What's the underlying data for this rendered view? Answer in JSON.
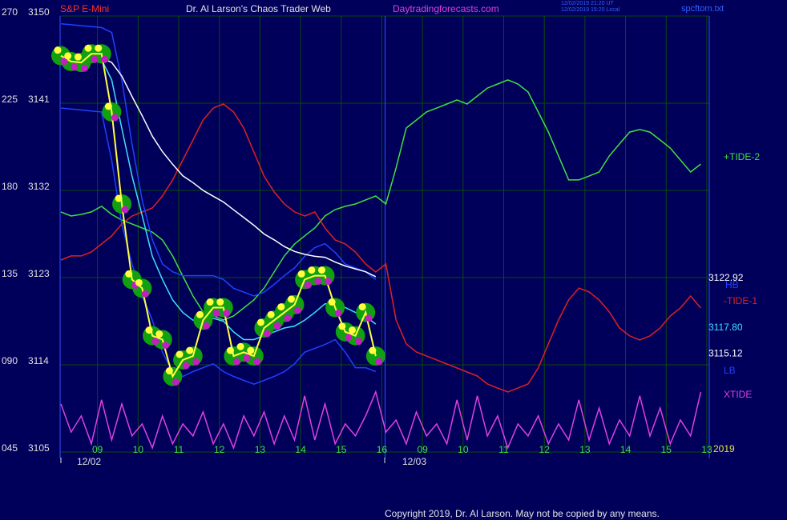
{
  "header": {
    "symbol": "S&P E-Mini",
    "title": "Dr. Al Larson's Chaos Trader Web",
    "site": "Daytradingforecasts.com",
    "stamp": [
      "12/02/2019 21:20 UT",
      "12/02/2019 15:20 Local"
    ],
    "file": "spcftom.txt"
  },
  "footer": "Copyright 2019, Dr. Al Larson. May not be copied by any means.",
  "chart_data": {
    "type": "line",
    "background": "#00005a",
    "grid": true,
    "grid_color": "#0a4a0a",
    "ylim": [
      3105,
      3150
    ],
    "yticks": [
      3105,
      3114,
      3123,
      3132,
      3141,
      3150
    ],
    "y2lim": [
      45,
      270
    ],
    "y2ticks": [
      {
        "value": 45,
        "label": "045"
      },
      {
        "value": 90,
        "label": "090"
      },
      135,
      180,
      225,
      270
    ],
    "xlim": [
      8.08,
      24.06
    ],
    "xticks": [
      {
        "value": 9,
        "label": "09"
      },
      10,
      11,
      12,
      13,
      14,
      15,
      16,
      {
        "value": 17,
        "label": "09"
      },
      {
        "value": 18,
        "label": "10"
      },
      {
        "value": 19,
        "label": "11"
      },
      {
        "value": 20,
        "label": "12"
      },
      {
        "value": 21,
        "label": "13"
      },
      {
        "value": 22,
        "label": "14"
      },
      {
        "value": 23,
        "label": "15"
      },
      {
        "value": 24,
        "label": "13"
      }
    ],
    "dates": [
      "12/02",
      "12/03"
    ],
    "year": "2019",
    "readouts": [
      {
        "value": 3122.92,
        "color": "#ffffff"
      },
      {
        "value": 3117.8,
        "label": "3117.80",
        "color": "#40e0ff"
      },
      {
        "value": 3115.12,
        "color": "#ffffff"
      }
    ],
    "band_labels": [
      "HB",
      "LB"
    ],
    "x": [
      8.1,
      8.35,
      8.6,
      8.85,
      9.1,
      9.35,
      9.6,
      9.85,
      10.1,
      10.35,
      10.6,
      10.85,
      11.1,
      11.35,
      11.6,
      11.85,
      12.1,
      12.35,
      12.6,
      12.85,
      13.1,
      13.35,
      13.6,
      13.85,
      14.1,
      14.35,
      14.6,
      14.85,
      15.1,
      15.35,
      15.6,
      15.85,
      16.1,
      16.35,
      16.6,
      16.85,
      17.1,
      17.35,
      17.6,
      17.85,
      18.1,
      18.35,
      18.6,
      18.85,
      19.1,
      19.35,
      19.6,
      19.85,
      20.1,
      20.35,
      20.6,
      20.85,
      21.1,
      21.35,
      21.6,
      21.85,
      22.1,
      22.35,
      22.6,
      22.85,
      23.1,
      23.35,
      23.6,
      23.85
    ],
    "series": [
      {
        "name": "+TIDE-2",
        "color": "#40e040",
        "axis": "y2",
        "values": [
          168.9,
          166.8,
          167.6,
          168.9,
          171.8,
          167.6,
          164.7,
          162.7,
          160.6,
          158.5,
          154.4,
          146.2,
          135.8,
          125.5,
          117.3,
          115.2,
          113.1,
          115.2,
          119.3,
          123.5,
          129.6,
          137.9,
          146.2,
          152.3,
          156.5,
          160.6,
          166.8,
          170.1,
          171.8,
          173.0,
          175.1,
          177.1,
          173.0,
          191.6,
          212.2,
          216.3,
          220.5,
          222.5,
          224.6,
          226.7,
          224.6,
          228.7,
          232.8,
          234.9,
          237.0,
          234.9,
          230.8,
          220.5,
          210.1,
          197.8,
          185.4,
          185.4,
          187.4,
          189.5,
          197.8,
          204.0,
          210.1,
          211.4,
          210.1,
          206.0,
          201.9,
          195.7,
          189.5,
          193.6
        ]
      },
      {
        "name": "-TIDE-1",
        "color": "#e02020",
        "axis": "y2",
        "values": [
          144.1,
          146.2,
          146.2,
          148.2,
          152.4,
          156.5,
          162.7,
          166.8,
          168.9,
          170.9,
          177.1,
          185.4,
          195.7,
          206.0,
          216.3,
          222.5,
          224.6,
          220.5,
          212.2,
          199.8,
          187.4,
          179.2,
          173.0,
          168.9,
          166.8,
          168.9,
          160.6,
          154.4,
          152.4,
          148.2,
          142.0,
          137.9,
          142.0,
          113.1,
          100.8,
          96.6,
          94.6,
          92.5,
          90.4,
          88.4,
          86.3,
          84.2,
          80.1,
          78.0,
          76.0,
          78.0,
          80.1,
          88.4,
          100.8,
          113.1,
          123.5,
          129.6,
          127.6,
          123.5,
          117.3,
          109.0,
          104.9,
          102.8,
          104.9,
          109.0,
          115.2,
          119.3,
          125.5,
          119.3
        ]
      },
      {
        "name": "XTIDE",
        "color": "#e040e0",
        "axis": "y2",
        "values": [
          69.8,
          55.3,
          63.6,
          49.2,
          71.9,
          51.2,
          69.8,
          53.3,
          59.5,
          47.1,
          63.6,
          49.2,
          59.5,
          53.3,
          65.7,
          49.2,
          59.5,
          47.1,
          63.6,
          53.3,
          65.7,
          49.2,
          63.6,
          51.2,
          74.0,
          51.2,
          69.8,
          49.2,
          59.5,
          53.3,
          63.6,
          76.0,
          55.3,
          61.5,
          49.2,
          65.7,
          53.3,
          59.5,
          49.2,
          71.9,
          51.2,
          74.0,
          53.3,
          63.6,
          47.1,
          59.5,
          53.3,
          63.6,
          49.2,
          59.5,
          51.2,
          71.9,
          51.2,
          67.7,
          49.2,
          61.5,
          53.3,
          74.0,
          53.3,
          67.7,
          49.2,
          61.5,
          53.3,
          76.0
        ]
      },
      {
        "color": "#2040ff",
        "values": [
          3149.2,
          3149.1,
          3149.0,
          3148.9,
          3148.8,
          3148.3,
          3143.4,
          3136.8,
          3131.0,
          3126.9,
          3124.4,
          3123.6,
          3123.2,
          3123.2,
          3123.2,
          3123.2,
          3122.8,
          3121.9,
          3121.5,
          3121.1,
          3121.5,
          3122.3,
          3123.2,
          3124.0,
          3125.2,
          3126.1,
          3126.5,
          3125.6,
          3124.4,
          3124.0,
          3123.6,
          3122.8,
          null,
          null,
          null,
          null,
          null,
          null,
          null,
          null,
          null,
          null,
          null,
          null,
          null,
          null,
          null,
          null,
          null,
          null,
          null,
          null,
          null,
          null,
          null,
          null,
          null,
          null,
          null,
          null,
          null,
          null,
          null,
          null
        ]
      },
      {
        "color": "#2040ff",
        "values": [
          3140.5,
          3140.4,
          3140.3,
          3140.2,
          3140.1,
          3135.1,
          3128.5,
          3124.4,
          3121.1,
          3118.6,
          3115.3,
          3113.3,
          3112.8,
          3113.3,
          3113.7,
          3114.1,
          3113.3,
          3112.8,
          3112.4,
          3112.0,
          3112.4,
          3112.8,
          3113.3,
          3114.1,
          3115.3,
          3115.7,
          3116.1,
          3116.6,
          3115.3,
          3113.7,
          3113.7,
          3113.3,
          null,
          null,
          null,
          null,
          null,
          null,
          null,
          null,
          null,
          null,
          null,
          null,
          null,
          null,
          null,
          null,
          null,
          null,
          null,
          null,
          null,
          null,
          null,
          null,
          null,
          null,
          null,
          null,
          null,
          null,
          null,
          null
        ]
      },
      {
        "color": "#ffffff",
        "values": [
          3145.7,
          3145.7,
          3145.7,
          3145.7,
          3145.7,
          3145.2,
          3143.8,
          3141.7,
          3139.7,
          3137.6,
          3136.0,
          3134.7,
          3133.5,
          3132.8,
          3132.0,
          3131.4,
          3130.8,
          3130.0,
          3129.2,
          3128.4,
          3127.5,
          3126.9,
          3126.2,
          3125.7,
          3125.4,
          3125.2,
          3125.1,
          3124.6,
          3124.2,
          3123.9,
          3123.6,
          3123.1,
          null,
          null,
          null,
          null,
          null,
          null,
          null,
          null,
          null,
          null,
          null,
          null,
          null,
          null,
          null,
          null,
          null,
          null,
          null,
          null,
          null,
          null,
          null,
          null,
          null,
          null,
          null,
          null,
          null,
          null,
          null,
          null
        ]
      },
      {
        "color": "#40e0ff",
        "values": [
          3145.7,
          3145.7,
          3145.7,
          3145.5,
          3145.5,
          3143.4,
          3138.4,
          3133.5,
          3129.4,
          3125.2,
          3122.8,
          3120.7,
          3119.4,
          3118.6,
          3118.6,
          3118.8,
          3118.5,
          3117.4,
          3116.6,
          3116.6,
          3117.0,
          3117.4,
          3117.8,
          3118.0,
          3118.6,
          3119.4,
          3120.3,
          3120.3,
          3119.9,
          3119.4,
          3119.0,
          3118.2,
          null,
          null,
          null,
          null,
          null,
          null,
          null,
          null,
          null,
          null,
          null,
          null,
          null,
          null,
          null,
          null,
          null,
          null,
          null,
          null,
          null,
          null,
          null,
          null,
          null,
          null,
          null,
          null,
          null,
          null,
          null,
          null
        ]
      },
      {
        "color": "#ffff40",
        "blobs": true,
        "values": [
          3145.9,
          3145.3,
          3145.2,
          3146.1,
          3146.1,
          3140.1,
          3130.6,
          3122.8,
          3121.9,
          3117.0,
          3116.6,
          3112.8,
          3114.5,
          3114.9,
          3118.6,
          3119.9,
          3119.9,
          3114.9,
          3115.3,
          3114.9,
          3117.8,
          3118.6,
          3119.4,
          3120.2,
          3122.8,
          3123.2,
          3123.2,
          3119.9,
          3117.4,
          3117.0,
          3119.4,
          3114.9,
          null,
          null,
          null,
          null,
          null,
          null,
          null,
          null,
          null,
          null,
          null,
          null,
          null,
          null,
          null,
          null,
          null,
          null,
          null,
          null,
          null,
          null,
          null,
          null,
          null,
          null,
          null,
          null,
          null,
          null,
          null,
          null
        ]
      }
    ]
  }
}
